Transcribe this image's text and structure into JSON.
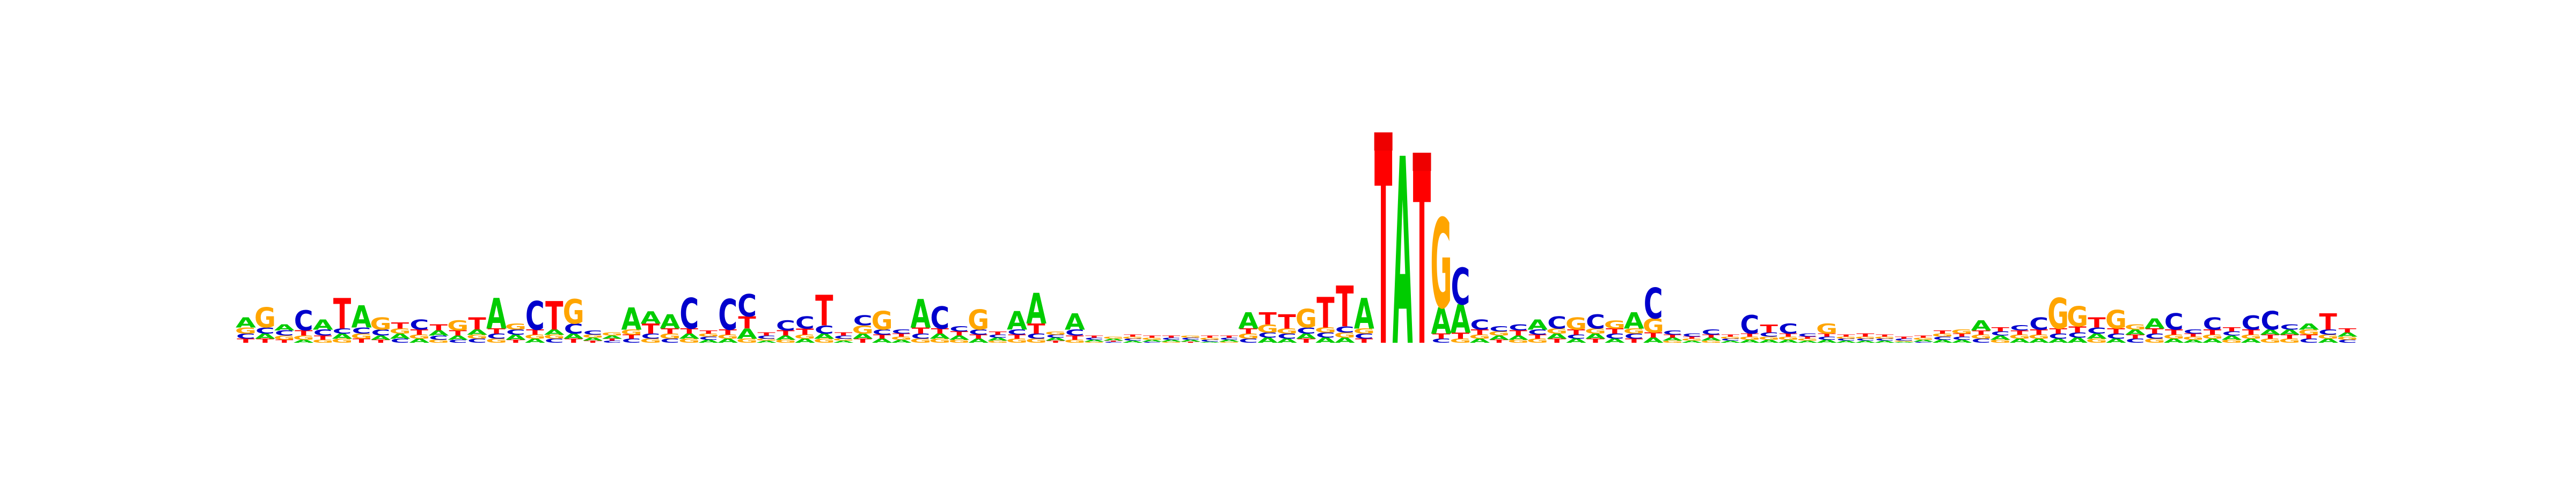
{
  "logo": {
    "type": "sequence-logo",
    "alphabet": [
      "A",
      "C",
      "G",
      "T"
    ],
    "colors": {
      "A": "#00cc00",
      "C": "#0000cc",
      "G": "#ffa500",
      "T": "#ff0000"
    },
    "max_bits": 2,
    "columns": [
      {
        "A": 0.1,
        "C": 0.05,
        "G": 0.06,
        "T": 0.04
      },
      {
        "A": 0.05,
        "C": 0.06,
        "G": 0.2,
        "T": 0.04
      },
      {
        "A": 0.06,
        "C": 0.05,
        "G": 0.04,
        "T": 0.03
      },
      {
        "A": 0.03,
        "C": 0.2,
        "G": 0.04,
        "T": 0.05
      },
      {
        "A": 0.1,
        "C": 0.06,
        "G": 0.03,
        "T": 0.04
      },
      {
        "A": 0.05,
        "C": 0.05,
        "G": 0.04,
        "T": 0.3
      },
      {
        "A": 0.22,
        "C": 0.06,
        "G": 0.05,
        "T": 0.04
      },
      {
        "A": 0.04,
        "C": 0.06,
        "G": 0.12,
        "T": 0.03
      },
      {
        "A": 0.05,
        "C": 0.04,
        "G": 0.05,
        "T": 0.06
      },
      {
        "A": 0.04,
        "C": 0.1,
        "G": 0.04,
        "T": 0.05
      },
      {
        "A": 0.05,
        "C": 0.04,
        "G": 0.03,
        "T": 0.06
      },
      {
        "A": 0.04,
        "C": 0.03,
        "G": 0.1,
        "T": 0.05
      },
      {
        "A": 0.05,
        "C": 0.04,
        "G": 0.04,
        "T": 0.12
      },
      {
        "A": 0.3,
        "C": 0.05,
        "G": 0.04,
        "T": 0.05
      },
      {
        "A": 0.05,
        "C": 0.05,
        "G": 0.06,
        "T": 0.03
      },
      {
        "A": 0.04,
        "C": 0.28,
        "G": 0.04,
        "T": 0.05
      },
      {
        "A": 0.05,
        "C": 0.04,
        "G": 0.04,
        "T": 0.28
      },
      {
        "A": 0.05,
        "C": 0.1,
        "G": 0.24,
        "T": 0.04
      },
      {
        "A": 0.03,
        "C": 0.04,
        "G": 0.03,
        "T": 0.02
      },
      {
        "A": 0.03,
        "C": 0.02,
        "G": 0.03,
        "T": 0.02
      },
      {
        "A": 0.22,
        "C": 0.04,
        "G": 0.05,
        "T": 0.04
      },
      {
        "A": 0.12,
        "C": 0.05,
        "G": 0.04,
        "T": 0.1
      },
      {
        "A": 0.14,
        "C": 0.04,
        "G": 0.05,
        "T": 0.05
      },
      {
        "A": 0.05,
        "C": 0.3,
        "G": 0.04,
        "T": 0.05
      },
      {
        "A": 0.03,
        "C": 0.03,
        "G": 0.03,
        "T": 0.03
      },
      {
        "A": 0.04,
        "C": 0.3,
        "G": 0.04,
        "T": 0.05
      },
      {
        "A": 0.1,
        "C": 0.22,
        "G": 0.04,
        "T": 0.12
      },
      {
        "A": 0.02,
        "C": 0.03,
        "G": 0.02,
        "T": 0.03
      },
      {
        "A": 0.04,
        "C": 0.1,
        "G": 0.03,
        "T": 0.05
      },
      {
        "A": 0.04,
        "C": 0.12,
        "G": 0.04,
        "T": 0.06
      },
      {
        "A": 0.05,
        "C": 0.08,
        "G": 0.04,
        "T": 0.3
      },
      {
        "A": 0.02,
        "C": 0.03,
        "G": 0.02,
        "T": 0.03
      },
      {
        "A": 0.05,
        "C": 0.1,
        "G": 0.08,
        "T": 0.04
      },
      {
        "A": 0.04,
        "C": 0.05,
        "G": 0.18,
        "T": 0.04
      },
      {
        "A": 0.03,
        "C": 0.04,
        "G": 0.03,
        "T": 0.03
      },
      {
        "A": 0.28,
        "C": 0.05,
        "G": 0.04,
        "T": 0.06
      },
      {
        "A": 0.05,
        "C": 0.22,
        "G": 0.04,
        "T": 0.05
      },
      {
        "A": 0.04,
        "C": 0.05,
        "G": 0.03,
        "T": 0.04
      },
      {
        "A": 0.04,
        "C": 0.05,
        "G": 0.2,
        "T": 0.04
      },
      {
        "A": 0.03,
        "C": 0.03,
        "G": 0.02,
        "T": 0.03
      },
      {
        "A": 0.18,
        "C": 0.05,
        "G": 0.04,
        "T": 0.04
      },
      {
        "A": 0.3,
        "C": 0.05,
        "G": 0.04,
        "T": 0.1
      },
      {
        "A": 0.03,
        "C": 0.03,
        "G": 0.03,
        "T": 0.02
      },
      {
        "A": 0.16,
        "C": 0.06,
        "G": 0.03,
        "T": 0.04
      },
      {
        "A": 0.02,
        "C": 0.02,
        "G": 0.01,
        "T": 0.02
      },
      {
        "A": 0.02,
        "C": 0.01,
        "G": 0.02,
        "T": 0.01
      },
      {
        "A": 0.02,
        "C": 0.02,
        "G": 0.02,
        "T": 0.02
      },
      {
        "A": 0.02,
        "C": 0.01,
        "G": 0.02,
        "T": 0.02
      },
      {
        "A": 0.02,
        "C": 0.02,
        "G": 0.01,
        "T": 0.02
      },
      {
        "A": 0.02,
        "C": 0.02,
        "G": 0.02,
        "T": 0.01
      },
      {
        "A": 0.01,
        "C": 0.02,
        "G": 0.02,
        "T": 0.02
      },
      {
        "A": 0.02,
        "C": 0.02,
        "G": 0.01,
        "T": 0.02
      },
      {
        "A": 0.16,
        "C": 0.04,
        "G": 0.05,
        "T": 0.05
      },
      {
        "A": 0.05,
        "C": 0.05,
        "G": 0.08,
        "T": 0.12
      },
      {
        "A": 0.04,
        "C": 0.05,
        "G": 0.05,
        "T": 0.14
      },
      {
        "A": 0.05,
        "C": 0.06,
        "G": 0.18,
        "T": 0.04
      },
      {
        "A": 0.05,
        "C": 0.05,
        "G": 0.05,
        "T": 0.3
      },
      {
        "A": 0.05,
        "C": 0.06,
        "G": 0.05,
        "T": 0.4
      },
      {
        "A": 0.3,
        "C": 0.05,
        "G": 0.05,
        "T": 0.04
      },
      {
        "A": 0.0,
        "C": 0.0,
        "G": 0.0,
        "T": 1.92
      },
      {
        "A": 1.84,
        "C": 0.0,
        "G": 0.0,
        "T": 0.0
      },
      {
        "A": 0.0,
        "C": 0.0,
        "G": 0.0,
        "T": 1.72
      },
      {
        "A": 0.26,
        "C": 0.04,
        "G": 0.88,
        "T": 0.05
      },
      {
        "A": 0.28,
        "C": 0.36,
        "G": 0.04,
        "T": 0.06
      },
      {
        "A": 0.04,
        "C": 0.1,
        "G": 0.04,
        "T": 0.05
      },
      {
        "A": 0.04,
        "C": 0.05,
        "G": 0.04,
        "T": 0.03
      },
      {
        "A": 0.04,
        "C": 0.06,
        "G": 0.03,
        "T": 0.05
      },
      {
        "A": 0.1,
        "C": 0.05,
        "G": 0.04,
        "T": 0.04
      },
      {
        "A": 0.05,
        "C": 0.12,
        "G": 0.05,
        "T": 0.04
      },
      {
        "A": 0.04,
        "C": 0.04,
        "G": 0.12,
        "T": 0.05
      },
      {
        "A": 0.05,
        "C": 0.14,
        "G": 0.05,
        "T": 0.04
      },
      {
        "A": 0.04,
        "C": 0.05,
        "G": 0.08,
        "T": 0.05
      },
      {
        "A": 0.16,
        "C": 0.05,
        "G": 0.05,
        "T": 0.04
      },
      {
        "A": 0.05,
        "C": 0.3,
        "G": 0.14,
        "T": 0.05
      },
      {
        "A": 0.03,
        "C": 0.04,
        "G": 0.02,
        "T": 0.03
      },
      {
        "A": 0.02,
        "C": 0.03,
        "G": 0.02,
        "T": 0.02
      },
      {
        "A": 0.03,
        "C": 0.05,
        "G": 0.02,
        "T": 0.03
      },
      {
        "A": 0.02,
        "C": 0.02,
        "G": 0.02,
        "T": 0.02
      },
      {
        "A": 0.03,
        "C": 0.18,
        "G": 0.03,
        "T": 0.03
      },
      {
        "A": 0.03,
        "C": 0.04,
        "G": 0.03,
        "T": 0.08
      },
      {
        "A": 0.03,
        "C": 0.1,
        "G": 0.03,
        "T": 0.03
      },
      {
        "A": 0.02,
        "C": 0.03,
        "G": 0.02,
        "T": 0.02
      },
      {
        "A": 0.03,
        "C": 0.03,
        "G": 0.1,
        "T": 0.03
      },
      {
        "A": 0.02,
        "C": 0.02,
        "G": 0.02,
        "T": 0.02
      },
      {
        "A": 0.02,
        "C": 0.02,
        "G": 0.02,
        "T": 0.03
      },
      {
        "A": 0.02,
        "C": 0.02,
        "G": 0.02,
        "T": 0.02
      },
      {
        "A": 0.01,
        "C": 0.02,
        "G": 0.01,
        "T": 0.02
      },
      {
        "A": 0.02,
        "C": 0.01,
        "G": 0.02,
        "T": 0.02
      },
      {
        "A": 0.03,
        "C": 0.03,
        "G": 0.03,
        "T": 0.03
      },
      {
        "A": 0.03,
        "C": 0.03,
        "G": 0.04,
        "T": 0.03
      },
      {
        "A": 0.1,
        "C": 0.04,
        "G": 0.04,
        "T": 0.04
      },
      {
        "A": 0.04,
        "C": 0.04,
        "G": 0.03,
        "T": 0.04
      },
      {
        "A": 0.04,
        "C": 0.05,
        "G": 0.04,
        "T": 0.04
      },
      {
        "A": 0.04,
        "C": 0.12,
        "G": 0.04,
        "T": 0.05
      },
      {
        "A": 0.04,
        "C": 0.05,
        "G": 0.3,
        "T": 0.05
      },
      {
        "A": 0.05,
        "C": 0.05,
        "G": 0.2,
        "T": 0.06
      },
      {
        "A": 0.05,
        "C": 0.06,
        "G": 0.04,
        "T": 0.1
      },
      {
        "A": 0.04,
        "C": 0.05,
        "G": 0.18,
        "T": 0.05
      },
      {
        "A": 0.05,
        "C": 0.04,
        "G": 0.05,
        "T": 0.04
      },
      {
        "A": 0.1,
        "C": 0.05,
        "G": 0.04,
        "T": 0.05
      },
      {
        "A": 0.04,
        "C": 0.16,
        "G": 0.04,
        "T": 0.05
      },
      {
        "A": 0.03,
        "C": 0.04,
        "G": 0.03,
        "T": 0.03
      },
      {
        "A": 0.04,
        "C": 0.12,
        "G": 0.04,
        "T": 0.05
      },
      {
        "A": 0.04,
        "C": 0.04,
        "G": 0.03,
        "T": 0.04
      },
      {
        "A": 0.04,
        "C": 0.14,
        "G": 0.04,
        "T": 0.05
      },
      {
        "A": 0.05,
        "C": 0.18,
        "G": 0.04,
        "T": 0.04
      },
      {
        "A": 0.05,
        "C": 0.05,
        "G": 0.04,
        "T": 0.04
      },
      {
        "A": 0.06,
        "C": 0.04,
        "G": 0.05,
        "T": 0.04
      },
      {
        "A": 0.04,
        "C": 0.05,
        "G": 0.04,
        "T": 0.16
      },
      {
        "A": 0.04,
        "C": 0.03,
        "G": 0.03,
        "T": 0.04
      }
    ]
  }
}
